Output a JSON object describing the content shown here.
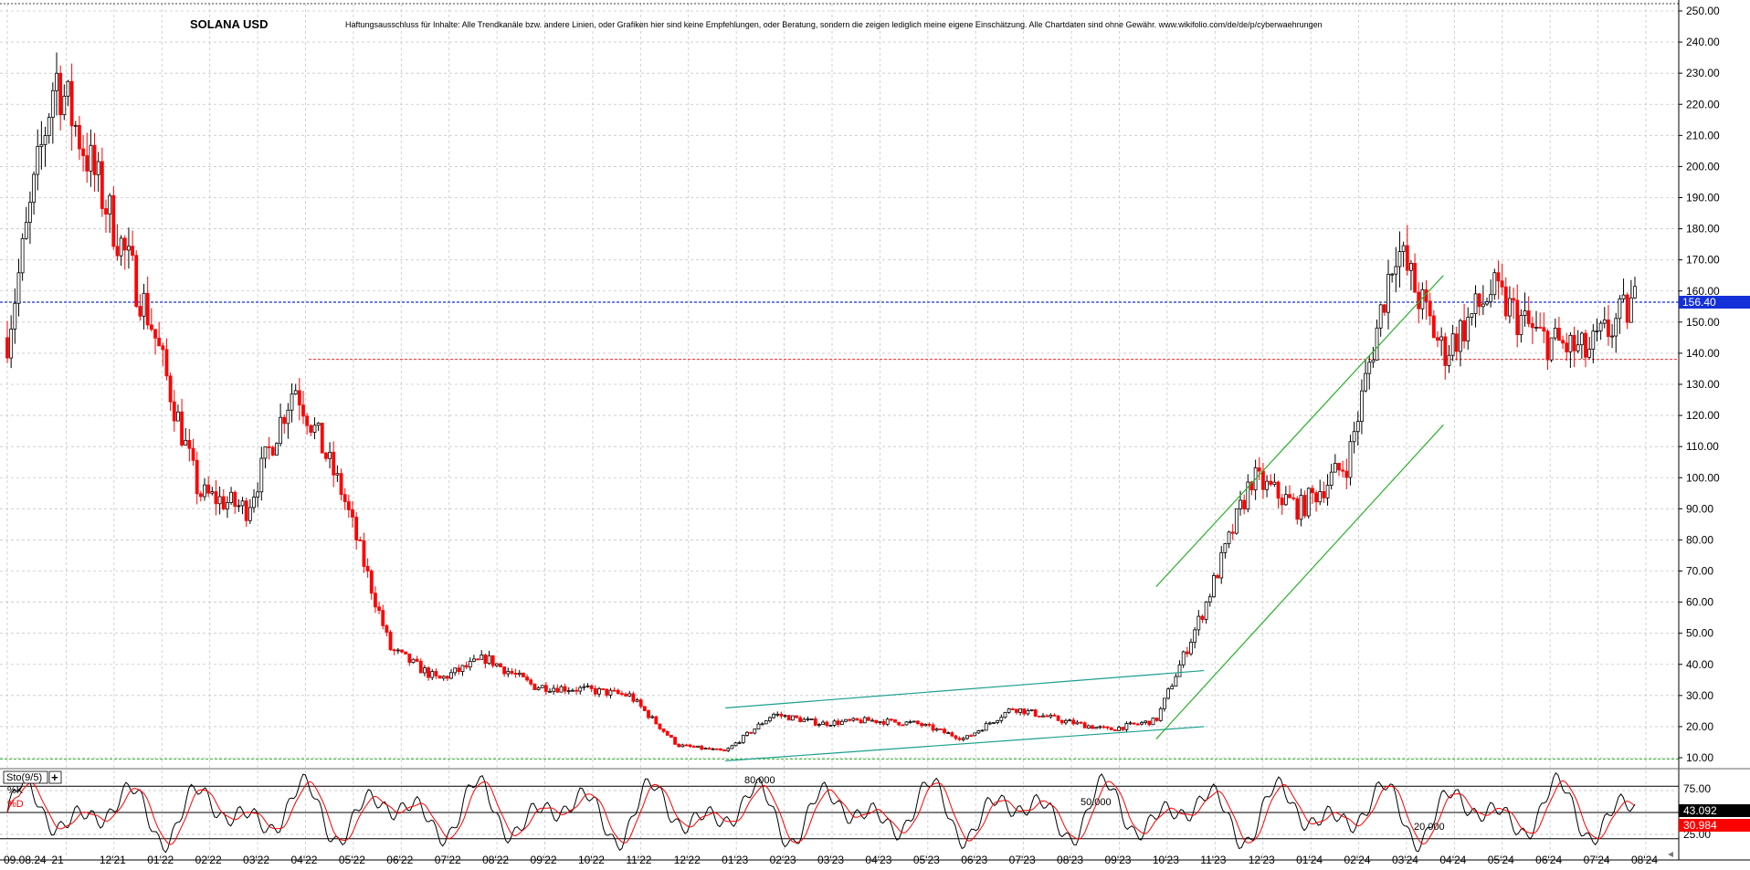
{
  "title": "SOLANA USD",
  "disclaimer": "Haftungsausschluss für Inhalte: Alle Trendkanäle bzw. andere Linien, oder Grafiken hier sind keine Empfehlungen, oder Beratung, sondern die zeigen lediglich meine eigene Einschätzung. Alle Chartdaten sind ohne Gewähr.  www.wikifolio.com/de/de/p/cyberwaehrungen",
  "colors": {
    "up": "#000000",
    "down": "#ff0000",
    "channel_green": "#2bb02b",
    "channel_teal": "#1a9f8f",
    "price_marker_bg": "#1430d8",
    "d_marker_bg": "#ff0000",
    "stoch_k": "#000000",
    "stoch_d": "#ff0000"
  },
  "price_marker": "156.40",
  "x_tick_labels": [
    "09.08.24",
    "21",
    "12'21",
    "01'22",
    "02'22",
    "03'22",
    "04'22",
    "05'22",
    "06'22",
    "07'22",
    "08'22",
    "09'22",
    "10'22",
    "11'22",
    "12'22",
    "01'23",
    "02'23",
    "03'23",
    "04'23",
    "05'23",
    "06'23",
    "07'23",
    "08'23",
    "09'23",
    "10'23",
    "11'23",
    "12'23",
    "01'24",
    "02'24",
    "03'24",
    "04'24",
    "05'24",
    "06'24",
    "07'24",
    "08'24"
  ],
  "stoch": {
    "label": "Sto(9/5)",
    "k_label": "%K",
    "d_label": "%D",
    "levels": [
      "80.000",
      "50.000",
      "20.000"
    ],
    "y_tick_labels": [
      "75.00",
      "25.00"
    ],
    "k_value": "43.092",
    "d_value": "30.984"
  },
  "chart_data": [
    {
      "type": "candlestick",
      "title": "SOLANA USD",
      "y_axis": {
        "ticks": [
          10,
          20,
          30,
          40,
          50,
          60,
          70,
          80,
          90,
          100,
          110,
          120,
          130,
          140,
          150,
          160,
          170,
          180,
          190,
          200,
          210,
          220,
          230,
          240,
          250
        ],
        "ylim": [
          7,
          253
        ],
        "position": "right",
        "grid": true
      },
      "x_axis": {
        "labels": [
          "09.08.24",
          "21",
          "12'21",
          "01'22",
          "02'22",
          "03'22",
          "04'22",
          "05'22",
          "06'22",
          "07'22",
          "08'22",
          "09'22",
          "10'22",
          "11'22",
          "12'22",
          "01'23",
          "02'23",
          "03'23",
          "04'23",
          "05'23",
          "06'23",
          "07'23",
          "08'23",
          "09'23",
          "10'23",
          "11'23",
          "12'23",
          "01'24",
          "02'24",
          "03'24",
          "04'24",
          "05'24",
          "06'24",
          "07'24",
          "08'24"
        ]
      },
      "approx_close_path": [
        [
          "Oct 2021",
          145
        ],
        [
          "Nov 2021",
          230
        ],
        [
          "Dec 2021",
          190
        ],
        [
          "Jan 2022",
          150
        ],
        [
          "Feb 2022",
          95
        ],
        [
          "Mar 2022",
          90
        ],
        [
          "Apr 2022",
          130
        ],
        [
          "May 2022",
          95
        ],
        [
          "Jun 2022",
          45
        ],
        [
          "Jul 2022",
          35
        ],
        [
          "Aug 2022",
          42
        ],
        [
          "Sep 2022",
          33
        ],
        [
          "Oct 2022",
          32
        ],
        [
          "Nov 2022",
          30
        ],
        [
          "Dec 2022",
          14
        ],
        [
          "Jan 2023",
          12
        ],
        [
          "Feb 2023",
          24
        ],
        [
          "Mar 2023",
          21
        ],
        [
          "Apr 2023",
          22
        ],
        [
          "May 2023",
          21
        ],
        [
          "Jun 2023",
          16
        ],
        [
          "Jul 2023",
          26
        ],
        [
          "Aug 2023",
          22
        ],
        [
          "Sep 2023",
          19
        ],
        [
          "Oct 2023",
          22
        ],
        [
          "Nov 2023",
          58
        ],
        [
          "Dec 2023",
          100
        ],
        [
          "Jan 2024",
          90
        ],
        [
          "Feb 2024",
          105
        ],
        [
          "Mar 2024",
          175
        ],
        [
          "Apr 2024",
          140
        ],
        [
          "May 2024",
          160
        ],
        [
          "Jun 2024",
          145
        ],
        [
          "Jul 2024",
          140
        ],
        [
          "Aug 2024",
          156.4
        ]
      ],
      "horizontal_lines": [
        {
          "value": 156.4,
          "style": "dotted",
          "color": "#1430d8"
        },
        {
          "value": 138,
          "style": "dotted",
          "color": "#ff0000"
        },
        {
          "value": 9.6,
          "style": "dotted",
          "color": "#2bb02b"
        }
      ],
      "trend_channels": [
        {
          "color": "#1a9f8f",
          "from": [
            "Jan 2023",
            26
          ],
          "to": [
            "Nov 2023",
            38
          ]
        },
        {
          "color": "#1a9f8f",
          "from": [
            "Jan 2023",
            9
          ],
          "to": [
            "Nov 2023",
            20
          ]
        },
        {
          "color": "#2bb02b",
          "from": [
            "Oct 2023",
            65
          ],
          "to": [
            "Apr 2024",
            165
          ]
        },
        {
          "color": "#2bb02b",
          "from": [
            "Oct 2023",
            16
          ],
          "to": [
            "Apr 2024",
            117
          ]
        }
      ]
    },
    {
      "type": "line",
      "title": "Sto(9/5)",
      "series": [
        {
          "name": "%K",
          "last": 43.092
        },
        {
          "name": "%D",
          "last": 30.984
        }
      ],
      "reference_levels": [
        80,
        50,
        20
      ],
      "ylim": [
        0,
        100
      ]
    }
  ]
}
